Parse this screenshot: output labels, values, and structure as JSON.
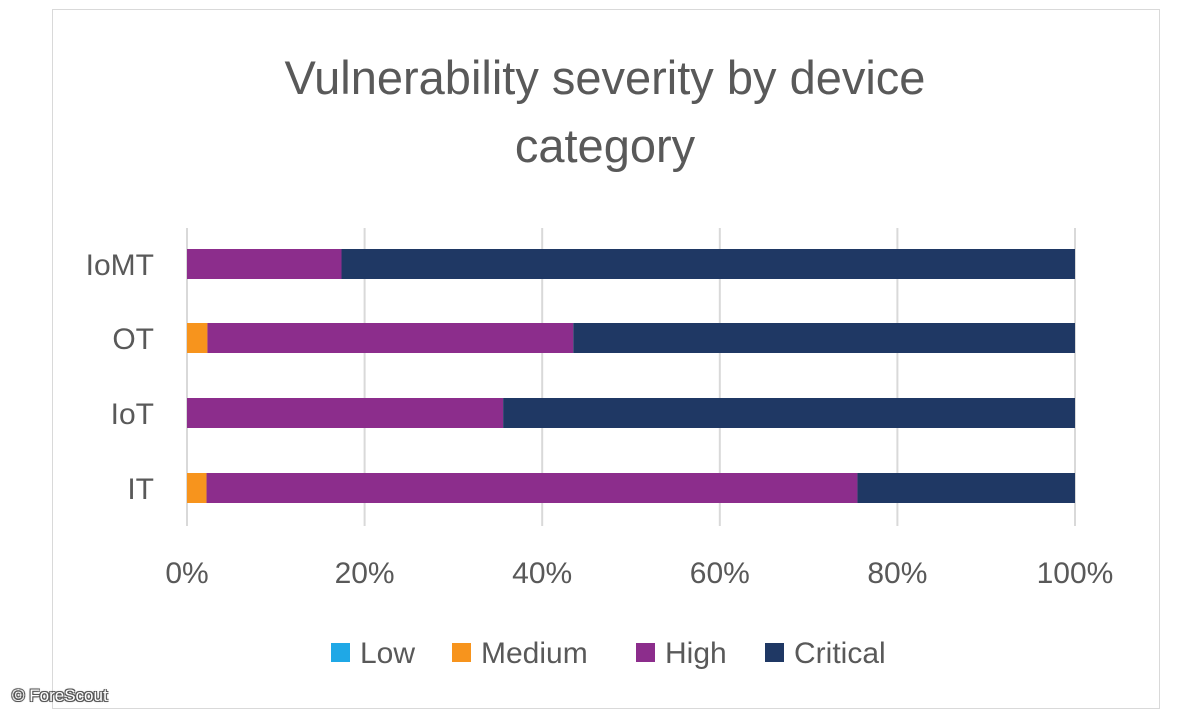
{
  "chart_data": {
    "type": "bar",
    "orientation": "horizontal",
    "stacked": "percent",
    "title": "Vulnerability severity by device category",
    "title_lines": [
      "Vulnerability severity by device",
      "category"
    ],
    "categories": [
      "IoMT",
      "OT",
      "IoT",
      "IT"
    ],
    "series": [
      {
        "name": "Low",
        "color": "#1fa8e6",
        "values": [
          0,
          0,
          0,
          0
        ]
      },
      {
        "name": "Medium",
        "color": "#f7941d",
        "values": [
          0,
          2.3,
          0,
          2.2
        ]
      },
      {
        "name": "High",
        "color": "#8c2d8c",
        "values": [
          17.4,
          41.2,
          35.6,
          73.3
        ]
      },
      {
        "name": "Critical",
        "color": "#1f3864",
        "values": [
          82.6,
          56.5,
          64.4,
          24.5
        ]
      }
    ],
    "xlim": [
      0,
      100
    ],
    "xticks": [
      0,
      20,
      40,
      60,
      80,
      100
    ],
    "xtick_labels": [
      "0%",
      "20%",
      "40%",
      "60%",
      "80%",
      "100%"
    ],
    "xlabel": "",
    "ylabel": "",
    "grid": "vertical",
    "legend_position": "bottom"
  },
  "credit": "© ForeScout"
}
